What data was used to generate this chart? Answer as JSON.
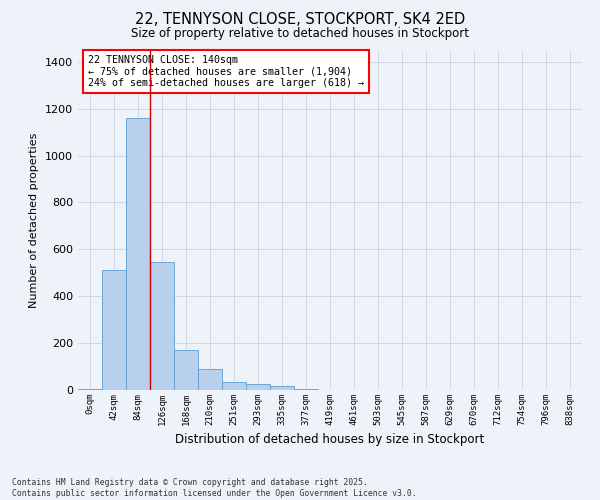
{
  "title": "22, TENNYSON CLOSE, STOCKPORT, SK4 2ED",
  "subtitle": "Size of property relative to detached houses in Stockport",
  "xlabel": "Distribution of detached houses by size in Stockport",
  "ylabel": "Number of detached properties",
  "footer_line1": "Contains HM Land Registry data © Crown copyright and database right 2025.",
  "footer_line2": "Contains public sector information licensed under the Open Government Licence v3.0.",
  "categories": [
    "0sqm",
    "42sqm",
    "84sqm",
    "126sqm",
    "168sqm",
    "210sqm",
    "251sqm",
    "293sqm",
    "335sqm",
    "377sqm",
    "419sqm",
    "461sqm",
    "503sqm",
    "545sqm",
    "587sqm",
    "629sqm",
    "670sqm",
    "712sqm",
    "754sqm",
    "796sqm",
    "838sqm"
  ],
  "values": [
    5,
    510,
    1160,
    545,
    170,
    90,
    35,
    25,
    15,
    5,
    0,
    0,
    0,
    0,
    0,
    0,
    0,
    0,
    0,
    0,
    0
  ],
  "bar_color": "#b8d0eb",
  "bar_edge_color": "#5a9fd4",
  "grid_color": "#cdd8ea",
  "background_color": "#eef2f9",
  "vline_x": 2.5,
  "vline_color": "#cc0000",
  "annotation_text": "22 TENNYSON CLOSE: 140sqm\n← 75% of detached houses are smaller (1,904)\n24% of semi-detached houses are larger (618) →",
  "ylim": [
    0,
    1450
  ],
  "yticks": [
    0,
    200,
    400,
    600,
    800,
    1000,
    1200,
    1400
  ]
}
